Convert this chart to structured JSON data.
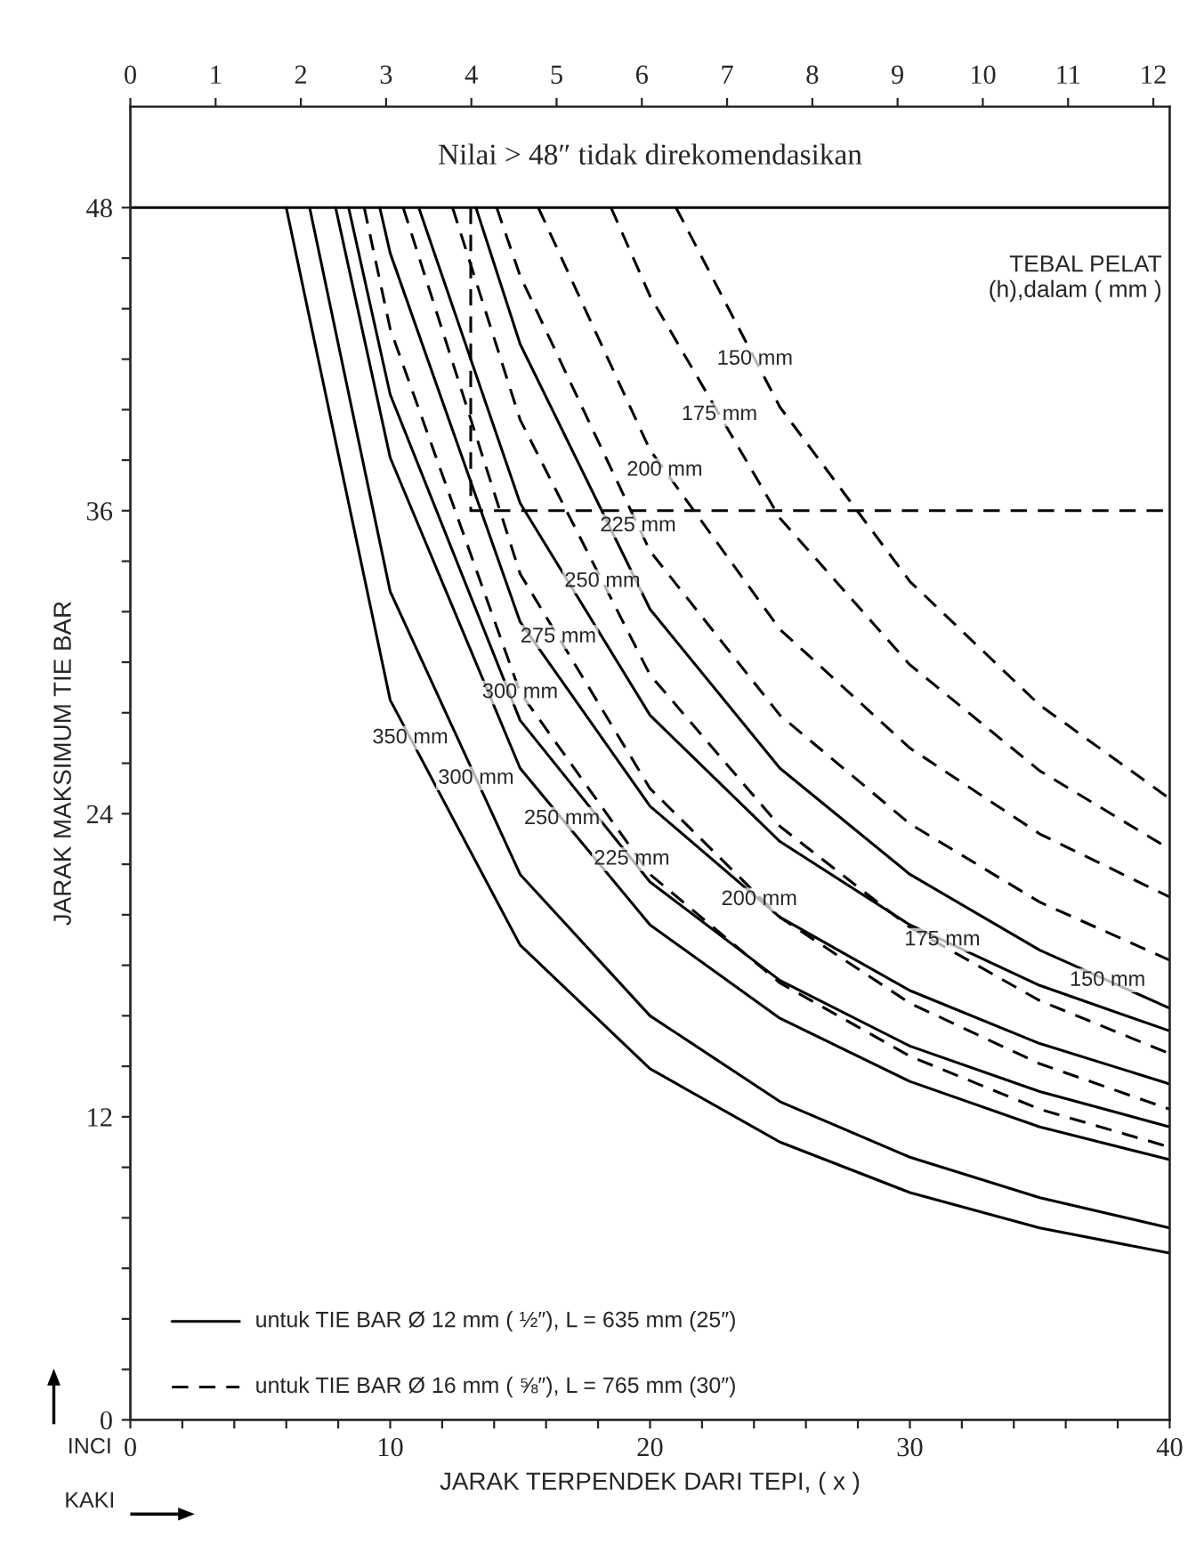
{
  "chart_data": {
    "type": "line",
    "xlabel": "JARAK TERPENDEK DARI TEPI, ( x )",
    "ylabel": "JARAK MAKSIMUM TIE BAR",
    "xlim": [
      0,
      40
    ],
    "ylim": [
      0,
      52
    ],
    "xticks": [
      0,
      {
        "value": 2,
        "label": null
      },
      {
        "value": 4,
        "label": null
      },
      {
        "value": 6,
        "label": null
      },
      {
        "value": 8,
        "label": null
      },
      10,
      {
        "value": 12,
        "label": null
      },
      {
        "value": 14,
        "label": null
      },
      {
        "value": 16,
        "label": null
      },
      {
        "value": 18,
        "label": null
      },
      20,
      {
        "value": 22,
        "label": null
      },
      {
        "value": 24,
        "label": null
      },
      {
        "value": 26,
        "label": null
      },
      {
        "value": 28,
        "label": null
      },
      30,
      {
        "value": 32,
        "label": null
      },
      {
        "value": 34,
        "label": null
      },
      {
        "value": 36,
        "label": null
      },
      {
        "value": 38,
        "label": null
      },
      40
    ],
    "yticks": [
      0,
      {
        "value": 2,
        "label": null
      },
      {
        "value": 4,
        "label": null
      },
      {
        "value": 6,
        "label": null
      },
      {
        "value": 8,
        "label": null
      },
      {
        "value": 10,
        "label": null
      },
      12,
      {
        "value": 14,
        "label": null
      },
      {
        "value": 16,
        "label": null
      },
      {
        "value": 18,
        "label": null
      },
      {
        "value": 20,
        "label": null
      },
      {
        "value": 22,
        "label": null
      },
      24,
      {
        "value": 26,
        "label": null
      },
      {
        "value": 28,
        "label": null
      },
      {
        "value": 30,
        "label": null
      },
      {
        "value": 32,
        "label": null
      },
      {
        "value": 34,
        "label": null
      },
      36,
      {
        "value": 38,
        "label": null
      },
      {
        "value": 40,
        "label": null
      },
      {
        "value": 42,
        "label": null
      },
      {
        "value": 44,
        "label": null
      },
      {
        "value": 46,
        "label": null
      },
      48
    ],
    "x2lim": [
      0,
      12.192
    ],
    "x2ticks": [
      0,
      1,
      2,
      3,
      4,
      5,
      6,
      7,
      8,
      9,
      10,
      11,
      12
    ],
    "ref_lines": [
      {
        "axis": "y",
        "value": 48,
        "color": "#000000",
        "line_style": "solid"
      }
    ],
    "annotations": [
      "Nilai > 48″ tidak direkomendasikan",
      "TEBAL PELAT\n(h),dalam ( mm )",
      "untuk TIE BAR Ø 12 mm ( ½″), L = 635 mm (25″)",
      "untuk TIE BAR Ø 16 mm ( ⅝″), L = 765 mm (30″)",
      "INCI",
      "KAKI"
    ],
    "series": [
      {
        "name": "350 mm",
        "color": "#000000",
        "line_style": "solid",
        "x": [
          6.0,
          10,
          15,
          20,
          25,
          30,
          35,
          40
        ],
        "values": [
          48,
          28.5,
          18.8,
          13.9,
          11.0,
          9.0,
          7.6,
          6.6
        ]
      },
      {
        "name": "300 mm",
        "color": "#000000",
        "line_style": "solid",
        "x": [
          6.9,
          10,
          15,
          20,
          25,
          30,
          35,
          40
        ],
        "values": [
          48,
          32.8,
          21.6,
          16.0,
          12.6,
          10.4,
          8.8,
          7.6
        ]
      },
      {
        "name": "250 mm",
        "color": "#000000",
        "line_style": "solid",
        "x": [
          7.9,
          10,
          15,
          20,
          25,
          30,
          35,
          40
        ],
        "values": [
          48,
          38.1,
          25.8,
          19.6,
          15.9,
          13.4,
          11.6,
          10.3
        ]
      },
      {
        "name": "225 mm",
        "color": "#000000",
        "line_style": "solid",
        "x": [
          8.4,
          10,
          15,
          20,
          25,
          30,
          35,
          40
        ],
        "values": [
          48,
          40.6,
          27.7,
          21.3,
          17.4,
          14.8,
          13.0,
          11.6
        ]
      },
      {
        "name": "200 mm",
        "color": "#000000",
        "line_style": "solid",
        "x": [
          9.6,
          10,
          15,
          20,
          25,
          30,
          35,
          40
        ],
        "values": [
          48,
          46.2,
          31.6,
          24.3,
          19.9,
          17.0,
          14.9,
          13.3
        ]
      },
      {
        "name": "175 mm",
        "color": "#000000",
        "line_style": "solid",
        "x": [
          11.1,
          15,
          20,
          25,
          30,
          35,
          40
        ],
        "values": [
          48,
          36.3,
          27.9,
          22.9,
          19.6,
          17.2,
          15.4
        ]
      },
      {
        "name": "150 mm",
        "color": "#000000",
        "line_style": "solid",
        "x": [
          13.3,
          15,
          20,
          25,
          30,
          35,
          40
        ],
        "values": [
          48,
          42.6,
          32.1,
          25.8,
          21.6,
          18.6,
          16.3
        ]
      },
      {
        "name": "150 mm",
        "color": "#000000",
        "line_style": "dashed",
        "x": [
          21.0,
          25,
          30,
          35,
          40
        ],
        "values": [
          48,
          40.1,
          33.2,
          28.3,
          24.6
        ]
      },
      {
        "name": "175 mm",
        "color": "#000000",
        "line_style": "dashed",
        "x": [
          18.5,
          20,
          25,
          30,
          35,
          40
        ],
        "values": [
          48,
          44.5,
          35.7,
          29.9,
          25.7,
          22.6
        ]
      },
      {
        "name": "200 mm",
        "color": "#000000",
        "line_style": "dashed",
        "x": [
          15.7,
          20,
          25,
          30,
          35,
          40
        ],
        "values": [
          48,
          38.4,
          31.3,
          26.6,
          23.2,
          20.7
        ]
      },
      {
        "name": "225 mm",
        "color": "#000000",
        "line_style": "dashed",
        "x": [
          14.1,
          15,
          20,
          25,
          30,
          35,
          40
        ],
        "values": [
          48,
          45.3,
          34.4,
          27.9,
          23.6,
          20.5,
          18.2
        ]
      },
      {
        "name": "250 mm",
        "color": "#000000",
        "line_style": "dashed",
        "x": [
          12.4,
          15,
          20,
          25,
          30,
          35,
          40
        ],
        "values": [
          48,
          39.6,
          29.5,
          23.5,
          19.5,
          16.6,
          14.5
        ]
      },
      {
        "name": "275 mm",
        "color": "#000000",
        "line_style": "dashed",
        "x": [
          10.5,
          15,
          20,
          25,
          30,
          35,
          40
        ],
        "values": [
          48,
          33.5,
          25.0,
          19.9,
          16.5,
          14.1,
          12.3
        ]
      },
      {
        "name": "300 mm",
        "color": "#000000",
        "line_style": "dashed",
        "x": [
          9.0,
          10,
          15,
          20,
          25,
          30,
          35,
          40
        ],
        "values": [
          48,
          43.2,
          28.8,
          21.6,
          17.3,
          14.4,
          12.3,
          10.8
        ]
      },
      {
        "color": "#000000",
        "line_style": "dashed",
        "x": [
          13.1,
          13.1,
          40
        ],
        "values": [
          48,
          36,
          36
        ]
      }
    ]
  }
}
